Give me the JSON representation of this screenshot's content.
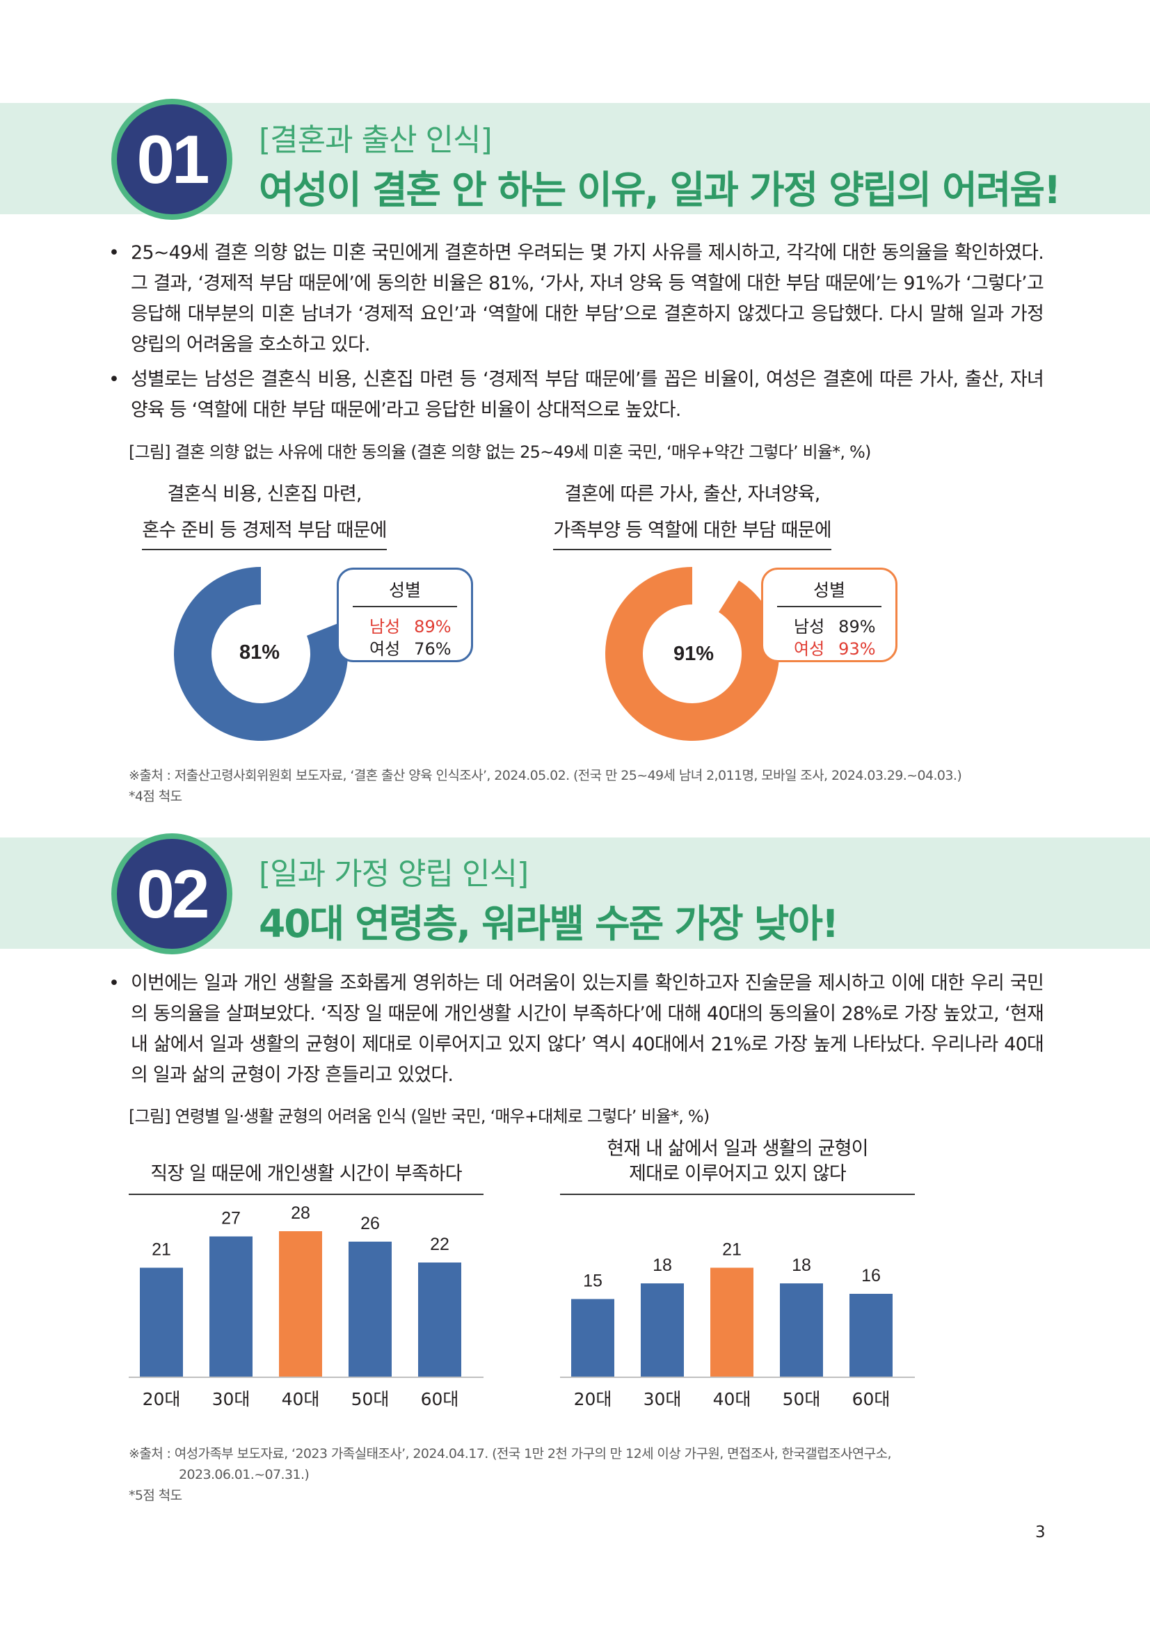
{
  "sections": [
    {
      "number": "01",
      "subtitle": "[결혼과 출산 인식]",
      "title": "여성이 결혼 안 하는 이유, 일과 가정 양립의 어려움!",
      "bullets": [
        "25~49세 결혼 의향 없는 미혼 국민에게 결혼하면 우려되는 몇 가지 사유를 제시하고, 각각에 대한 동의율을 확인하였다. 그 결과, ‘경제적 부담 때문에’에 동의한 비율은 81%, ‘가사, 자녀 양육 등 역할에 대한 부담 때문에’는 91%가 ‘그렇다’고 응답해 대부분의 미혼 남녀가 ‘경제적 요인’과 ‘역할에 대한 부담’으로 결혼하지 않겠다고 응답했다. 다시 말해 일과 가정 양립의 어려움을 호소하고 있다.",
        "성별로는 남성은 결혼식 비용, 신혼집 마련 등 ‘경제적 부담 때문에’를 꼽은 비율이, 여성은 결혼에 따른 가사, 출산, 자녀 양육 등 ‘역할에 대한 부담 때문에’라고 응답한 비율이 상대적으로 높았다."
      ],
      "figure_caption": "[그림] 결혼 의향 없는 사유에 대한 동의율 (결혼 의향 없는 25~49세 미혼 국민, ‘매우+약간 그렇다’ 비율*, %)",
      "source_lines": [
        "※출처 : 저출산고령사회위원회 보도자료, ‘결혼 출산 양육 인식조사’, 2024.05.02. (전국 만 25~49세 남녀 2,011명, 모바일 조사, 2024.03.29.~04.03.)",
        "*4점 척도"
      ]
    },
    {
      "number": "02",
      "subtitle": "[일과 가정 양립 인식]",
      "title": "40대 연령층, 워라밸 수준 가장 낮아!",
      "bullets": [
        "이번에는 일과 개인 생활을 조화롭게 영위하는 데 어려움이 있는지를 확인하고자 진술문을 제시하고 이에 대한 우리 국민의 동의율을 살펴보았다. ‘직장 일 때문에 개인생활 시간이 부족하다’에 대해 40대의 동의율이 28%로 가장 높았고, ‘현재 내 삶에서 일과 생활의 균형이 제대로 이루어지고 있지 않다’ 역시 40대에서 21%로 가장 높게 나타났다. 우리나라 40대의 일과 삶의 균형이 가장 흔들리고 있었다."
      ],
      "figure_caption": "[그림] 연령별 일·생활 균형의 어려움 인식 (일반 국민, ‘매우+대체로 그렇다’ 비율*, %)",
      "source_lines": [
        "※출처 : 여성가족부 보도자료, ‘2023 가족실태조사’, 2024.04.17. (전국 1만 2천 가구의 만 12세 이상 가구원, 면접조사, 한국갤럽조사연구소,",
        "2023.06.01.~07.31.)",
        "*5점 척도"
      ]
    }
  ],
  "colors": {
    "blue": "#416ca8",
    "orange": "#f28444",
    "green_band": "#dcefe6",
    "green_text": "#2f9a66",
    "badge_fill": "#2f3e7d",
    "badge_ring": "#4db683",
    "highlight_red": "#e03c32"
  },
  "chart_data": [
    {
      "type": "pie",
      "title_lines": [
        "결혼식 비용, 신혼집 마련,",
        "혼수 준비 등 경제적 부담 때문에"
      ],
      "value": 81,
      "center_label": "81%",
      "color": "#416ca8",
      "legend": {
        "title": "성별",
        "rows": [
          {
            "label": "남성",
            "value": "89%",
            "highlight": true
          },
          {
            "label": "여성",
            "value": "76%",
            "highlight": false
          }
        ]
      }
    },
    {
      "type": "pie",
      "title_lines": [
        "결혼에 따른 가사, 출산, 자녀양육,",
        "가족부양 등 역할에 대한 부담 때문에"
      ],
      "value": 91,
      "center_label": "91%",
      "color": "#f28444",
      "legend": {
        "title": "성별",
        "rows": [
          {
            "label": "남성",
            "value": "89%",
            "highlight": false
          },
          {
            "label": "여성",
            "value": "93%",
            "highlight": true
          }
        ]
      }
    },
    {
      "type": "bar",
      "title_lines": [
        "직장 일 때문에 개인생활 시간이 부족하다"
      ],
      "categories": [
        "20대",
        "30대",
        "40대",
        "50대",
        "60대"
      ],
      "values": [
        21,
        27,
        28,
        26,
        22
      ],
      "highlight_index": 2,
      "ylim": [
        0,
        30
      ]
    },
    {
      "type": "bar",
      "title_lines": [
        "현재 내 삶에서 일과 생활의 균형이",
        "제대로 이루어지고 있지 않다"
      ],
      "categories": [
        "20대",
        "30대",
        "40대",
        "50대",
        "60대"
      ],
      "values": [
        15,
        18,
        21,
        18,
        16
      ],
      "highlight_index": 2,
      "ylim": [
        0,
        30
      ]
    }
  ],
  "page_number": "3"
}
